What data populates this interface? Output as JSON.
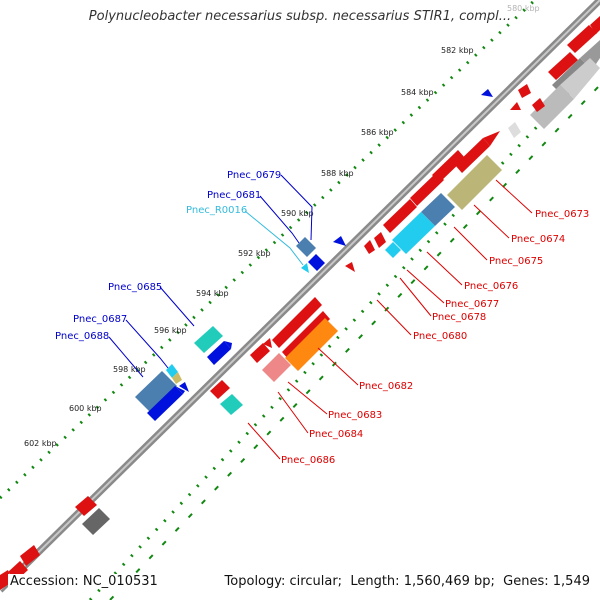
{
  "title": "Polynucleobacter necessarius subsp. necessarius STIR1, compl...",
  "footer": {
    "accession_label": "Accession:",
    "accession": "NC_010531",
    "topology_label": "Topology:",
    "topology": "circular",
    "length_label": "Length:",
    "length": "1,560,469 bp",
    "genes_label": "Genes:",
    "genes": "1,549"
  },
  "ticks": [
    "580 kbp",
    "582 kbp",
    "584 kbp",
    "586 kbp",
    "588 kbp",
    "590 kbp",
    "592 kbp",
    "594 kbp",
    "596 kbp",
    "598 kbp",
    "600 kbp",
    "602 kbp"
  ],
  "gene_labels": {
    "forward": [
      "Pnec_0679",
      "Pnec_0681",
      "Pnec_R0016",
      "Pnec_0685",
      "Pnec_0687",
      "Pnec_0688"
    ],
    "reverse": [
      "Pnec_0673",
      "Pnec_0674",
      "Pnec_0675",
      "Pnec_0676",
      "Pnec_0677",
      "Pnec_0678",
      "Pnec_0680",
      "Pnec_0682",
      "Pnec_0683",
      "Pnec_0684",
      "Pnec_0686"
    ]
  },
  "colors": {
    "backbone": "#8a8a8a",
    "forward_label": "#0000cc",
    "rna_label": "#33bbdd",
    "reverse_label": "#dd0000",
    "forward_tick_dots": "#117711"
  }
}
